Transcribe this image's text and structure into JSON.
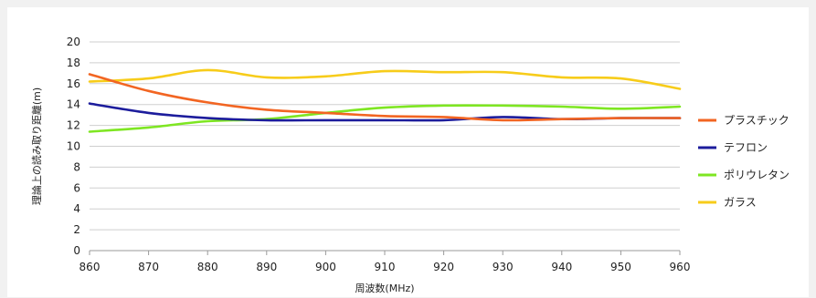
{
  "chart_data": {
    "type": "line",
    "title": "",
    "xlabel": "周波数(MHz)",
    "ylabel": "理論上の読み取り距離(m)",
    "xlim": [
      860,
      960
    ],
    "ylim": [
      0,
      20
    ],
    "x_ticks": [
      "860",
      "870",
      "880",
      "890",
      "900",
      "910",
      "920",
      "930",
      "940",
      "950",
      "960"
    ],
    "y_ticks": [
      "0",
      "2",
      "4",
      "6",
      "8",
      "10",
      "12",
      "14",
      "16",
      "18",
      "20"
    ],
    "grid": "horizontal",
    "legend_position": "right",
    "x": [
      860,
      870,
      880,
      890,
      900,
      910,
      920,
      930,
      940,
      950,
      960
    ],
    "series": [
      {
        "name": "プラスチック",
        "color": "#f26522",
        "values": [
          16.9,
          15.3,
          14.2,
          13.5,
          13.2,
          12.9,
          12.8,
          12.5,
          12.6,
          12.7,
          12.7
        ]
      },
      {
        "name": "テフロン",
        "color": "#1c1c9c",
        "values": [
          14.1,
          13.2,
          12.7,
          12.5,
          12.5,
          12.5,
          12.5,
          12.8,
          12.6,
          12.7,
          12.7
        ]
      },
      {
        "name": "ポリウレタン",
        "color": "#7ee622",
        "values": [
          11.4,
          11.8,
          12.4,
          12.6,
          13.2,
          13.7,
          13.9,
          13.9,
          13.8,
          13.6,
          13.8
        ]
      },
      {
        "name": "ガラス",
        "color": "#f7cc1a",
        "values": [
          16.2,
          16.5,
          17.3,
          16.6,
          16.7,
          17.2,
          17.1,
          17.1,
          16.6,
          16.5,
          15.5
        ]
      }
    ]
  }
}
